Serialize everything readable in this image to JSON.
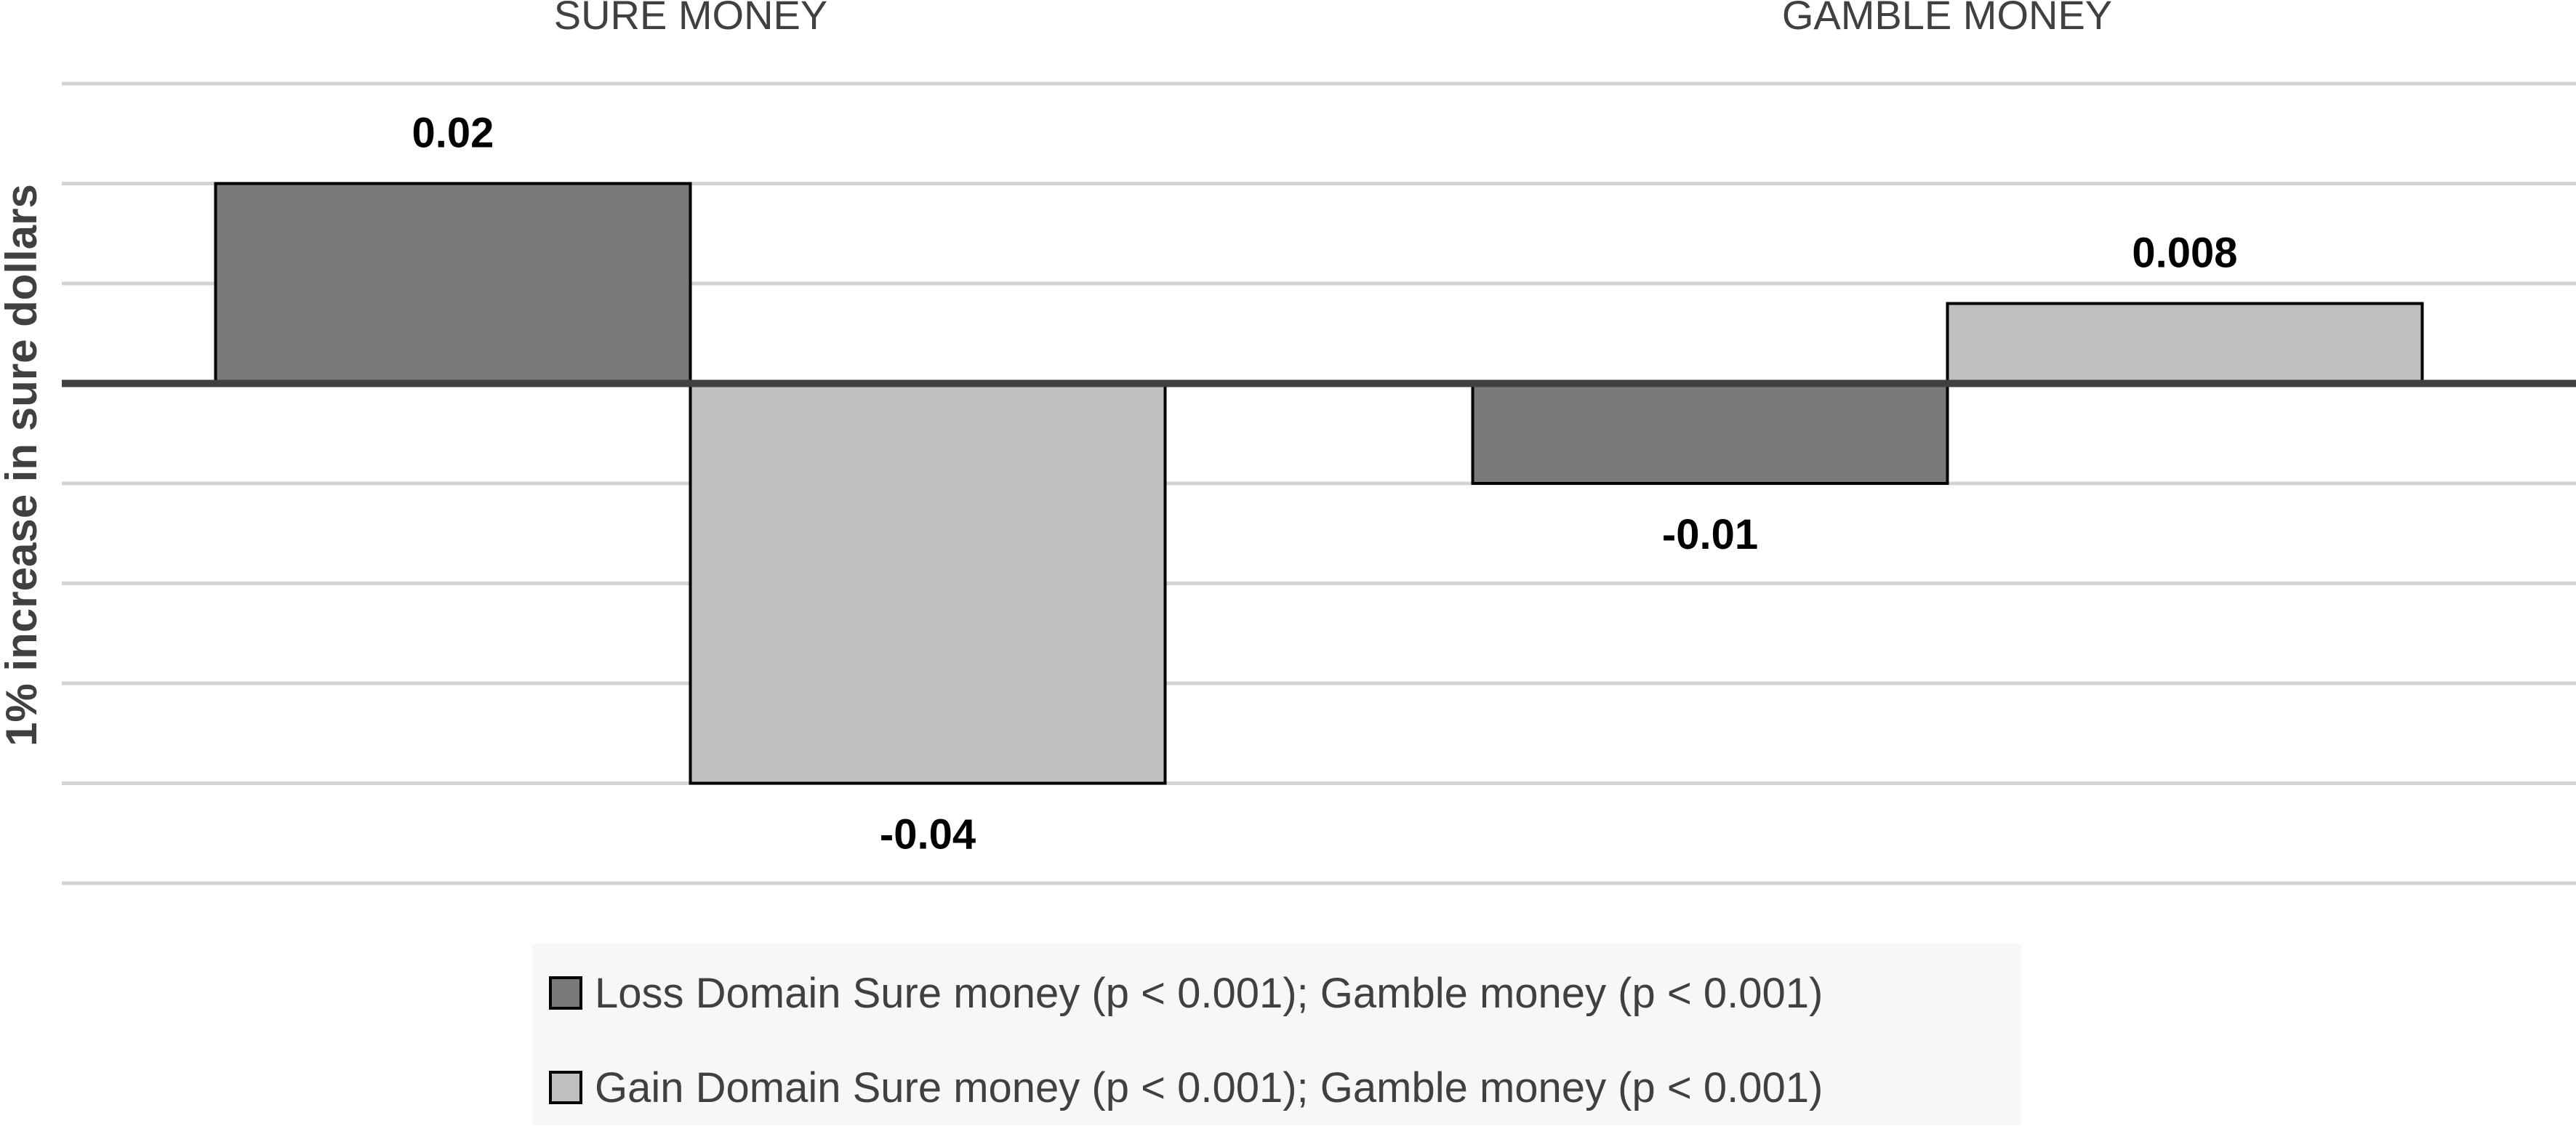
{
  "chart_data": {
    "type": "bar",
    "categories": [
      "SURE MONEY",
      "GAMBLE MONEY"
    ],
    "series": [
      {
        "name": "Loss Domain Sure money (p < 0.001); Gamble money (p < 0.001)",
        "values": [
          0.02,
          -0.01
        ],
        "labels": [
          "0.02",
          "-0.01"
        ],
        "color": "#7a7a7a"
      },
      {
        "name": "Gain Domain Sure money (p < 0.001); Gamble money (p < 0.001)",
        "values": [
          -0.04,
          0.008
        ],
        "labels": [
          "-0.04",
          "0.008"
        ],
        "color": "#bfbfbf"
      }
    ],
    "ylabel": "1% increase in sure dollars",
    "ylim": [
      -0.05,
      0.03
    ],
    "grid_step": 0.01,
    "grid": true,
    "category_axis_position": "top",
    "legend_position": "bottom",
    "colors": {
      "grid": "#d4d4d4",
      "zero_line": "#404040",
      "bar_border": "#000000",
      "legend_bg": "#f7f7f7"
    }
  }
}
